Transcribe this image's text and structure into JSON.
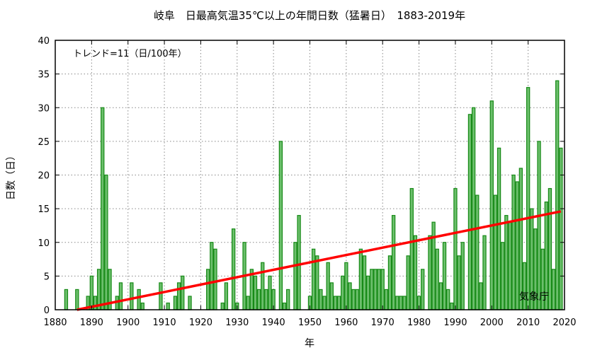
{
  "chart_data": {
    "type": "bar",
    "title": "岐阜　日最高気温35℃以上の年間日数（猛暑日）　1883-2019年",
    "xlabel": "年",
    "ylabel": "日数（日）",
    "xlim": [
      1880,
      2020
    ],
    "ylim": [
      0,
      40
    ],
    "xticks": [
      "1880",
      "1890",
      "1900",
      "1910",
      "1920",
      "1930",
      "1940",
      "1950",
      "1960",
      "1970",
      "1980",
      "1990",
      "2000",
      "2010",
      "2020"
    ],
    "yticks": [
      "0",
      "5",
      "10",
      "15",
      "20",
      "25",
      "30",
      "35",
      "40"
    ],
    "grid": true,
    "trend_label": "トレンド=11（日/100年）",
    "trend": {
      "x": [
        1886,
        2019
      ],
      "y": [
        0.0,
        14.6
      ]
    },
    "credit": "気象庁",
    "start_year": 1883,
    "values": [
      3,
      0,
      0,
      3,
      0,
      0,
      2,
      5,
      2,
      6,
      30,
      20,
      6,
      0,
      2,
      4,
      0,
      0,
      4,
      0,
      3,
      1,
      0,
      0,
      0,
      0,
      4,
      0,
      1,
      0,
      2,
      4,
      5,
      0,
      2,
      0,
      0,
      0,
      0,
      6,
      10,
      9,
      0,
      1,
      4,
      0,
      12,
      1,
      0,
      10,
      2,
      6,
      5,
      3,
      7,
      3,
      5,
      3,
      0,
      25,
      1,
      3,
      0,
      10,
      14,
      0,
      0,
      2,
      9,
      8,
      3,
      2,
      7,
      4,
      2,
      2,
      5,
      7,
      4,
      3,
      3,
      9,
      8,
      5,
      6,
      6,
      6,
      6,
      3,
      8,
      14,
      2,
      2,
      2,
      8,
      18,
      11,
      2,
      6,
      0,
      11,
      13,
      9,
      4,
      10,
      3,
      1,
      18,
      8,
      10,
      0,
      29,
      30,
      17,
      4,
      11,
      0,
      31,
      17,
      24,
      10,
      14,
      13,
      20,
      19,
      21,
      7,
      33,
      15,
      12,
      25,
      9,
      16,
      18,
      6,
      34,
      24
    ],
    "colors": {
      "bar_fill": "#6cbf6c",
      "bar_stroke": "#178a17",
      "trend": "#ff0000"
    }
  }
}
